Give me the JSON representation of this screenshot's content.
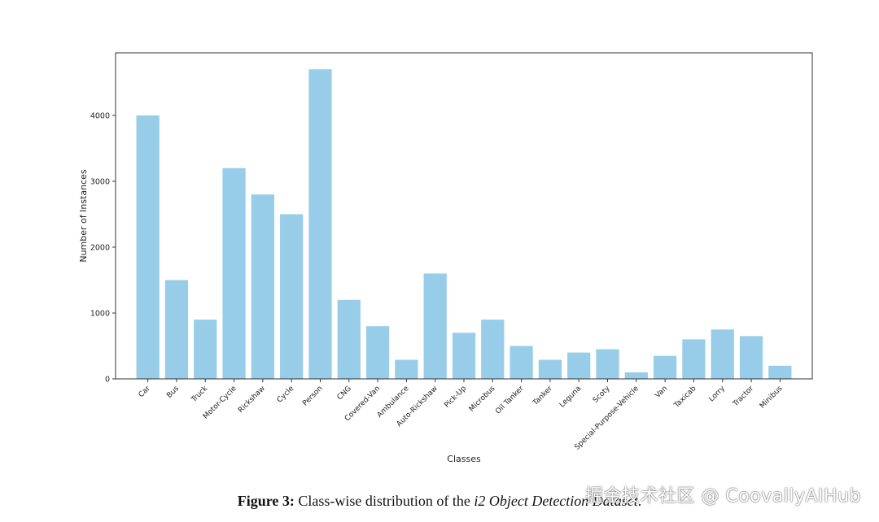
{
  "chart_data": {
    "type": "bar",
    "title": "",
    "xlabel": "Classes",
    "ylabel": "Number of Instances",
    "ylim": [
      0,
      4950
    ],
    "yticks": [
      0,
      1000,
      2000,
      3000,
      4000
    ],
    "bar_color": "#97cde8",
    "categories": [
      "Car",
      "Bus",
      "Truck",
      "Motor-Cycle",
      "Rickshaw",
      "Cycle",
      "Person",
      "CNG",
      "Covered-Van",
      "Ambulance",
      "Auto-Rickshaw",
      "Pick-Up",
      "Microbus",
      "Oil Tanker",
      "Tanker",
      "Leguna",
      "Scoty",
      "Special-Purpose-Vehicle",
      "Van",
      "Taxicab",
      "Lorry",
      "Tractor",
      "Minibus"
    ],
    "values": [
      4000,
      1500,
      900,
      3200,
      2800,
      2500,
      4700,
      1200,
      800,
      290,
      1600,
      700,
      900,
      500,
      290,
      400,
      450,
      100,
      350,
      600,
      750,
      650,
      200
    ]
  },
  "caption": {
    "label": "Figure 3:",
    "text_before": " Class-wise distribution of the ",
    "italic": "i2 Object Detection Dataset",
    "text_after": "."
  },
  "watermark": "掘金技术社区 @ CoovallyAIHub"
}
